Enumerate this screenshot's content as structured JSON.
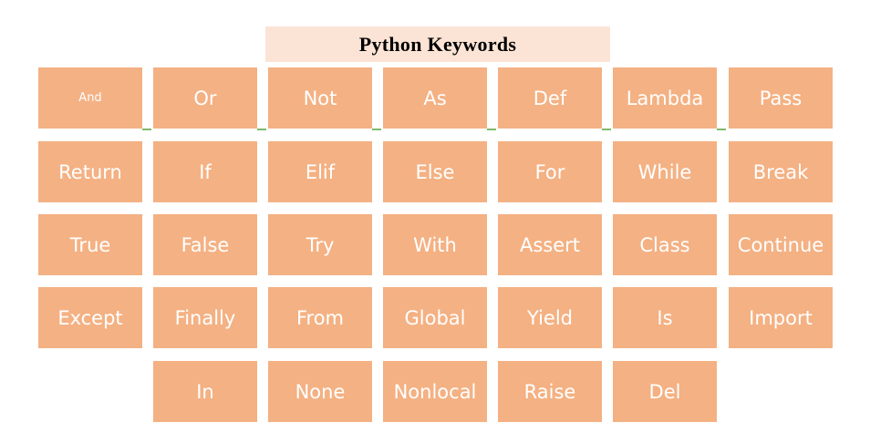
{
  "title": "Python Keywords",
  "colors": {
    "box_fill": "#f4b183",
    "title_fill": "#fbe4d5",
    "keyword_text": "#ffffff",
    "connector": "#7fba6b"
  },
  "rows": [
    [
      "And",
      "Or",
      "Not",
      "As",
      "Def",
      "Lambda",
      "Pass"
    ],
    [
      "Return",
      "If",
      "Elif",
      "Else",
      "For",
      "While",
      "Break"
    ],
    [
      "True",
      "False",
      "Try",
      "With",
      "Assert",
      "Class",
      "Continue"
    ],
    [
      "Except",
      "Finally",
      "From",
      "Global",
      "Yield",
      "Is",
      "Import"
    ],
    [
      "",
      "In",
      "None",
      "Nonlocal",
      "Raise",
      "Del",
      ""
    ]
  ]
}
